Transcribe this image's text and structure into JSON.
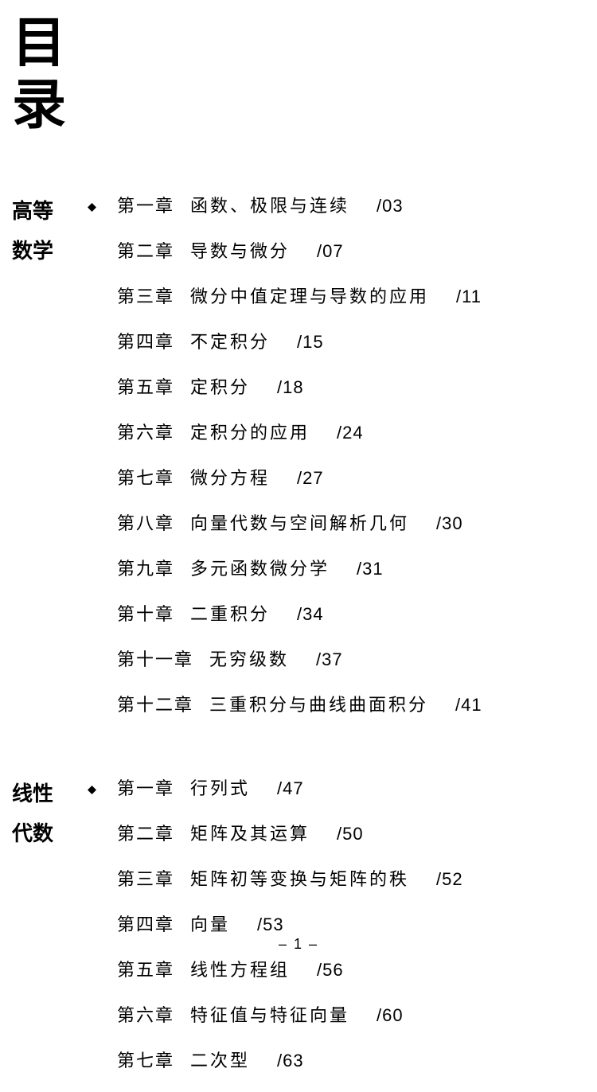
{
  "title": {
    "line1": "目",
    "line2": "录"
  },
  "sections": [
    {
      "label_line1": "高等",
      "label_line2": "数学",
      "chapters": [
        {
          "num": "第一章",
          "title": "函数、极限与连续",
          "page": "/03"
        },
        {
          "num": "第二章",
          "title": "导数与微分",
          "page": "/07"
        },
        {
          "num": "第三章",
          "title": "微分中值定理与导数的应用",
          "page": "/11"
        },
        {
          "num": "第四章",
          "title": "不定积分",
          "page": "/15"
        },
        {
          "num": "第五章",
          "title": "定积分",
          "page": "/18"
        },
        {
          "num": "第六章",
          "title": "定积分的应用",
          "page": "/24"
        },
        {
          "num": "第七章",
          "title": "微分方程",
          "page": "/27"
        },
        {
          "num": "第八章",
          "title": "向量代数与空间解析几何",
          "page": "/30"
        },
        {
          "num": "第九章",
          "title": "多元函数微分学",
          "page": "/31"
        },
        {
          "num": "第十章",
          "title": "二重积分",
          "page": "/34"
        },
        {
          "num": "第十一章",
          "title": "无穷级数",
          "page": "/37"
        },
        {
          "num": "第十二章",
          "title": "三重积分与曲线曲面积分",
          "page": "/41"
        }
      ]
    },
    {
      "label_line1": "线性",
      "label_line2": "代数",
      "chapters": [
        {
          "num": "第一章",
          "title": "行列式",
          "page": "/47"
        },
        {
          "num": "第二章",
          "title": "矩阵及其运算",
          "page": "/50"
        },
        {
          "num": "第三章",
          "title": "矩阵初等变换与矩阵的秩",
          "page": "/52"
        },
        {
          "num": "第四章",
          "title": "向量",
          "page": "/53"
        },
        {
          "num": "第五章",
          "title": "线性方程组",
          "page": "/56"
        },
        {
          "num": "第六章",
          "title": "特征值与特征向量",
          "page": "/60"
        },
        {
          "num": "第七章",
          "title": "二次型",
          "page": "/63"
        }
      ]
    }
  ],
  "footer": "– 1 –",
  "colors": {
    "text": "#000000",
    "background": "#ffffff"
  }
}
